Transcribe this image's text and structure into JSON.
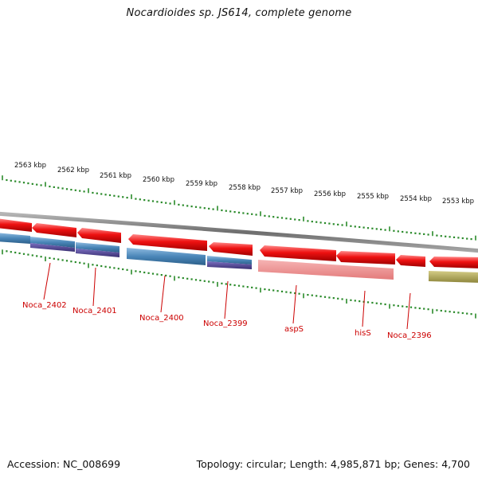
{
  "title": "Nocardioides sp. JS614, complete genome",
  "footer": {
    "accession": "Accession: NC_008699",
    "topology": "Topology: circular; Length: 4,985,871 bp; Genes: 4,700"
  },
  "colors": {
    "backbone": "#8a8a8a",
    "ticks": "#2a8a2a",
    "forward_gene": "#ee1111",
    "reverse_gene_blue": "#4a86b8",
    "reverse_gene_purple": "#4b3f8a",
    "reverse_gene_pink": "#f09090",
    "reverse_gene_olive": "#b0a85a",
    "label": "#cc0000"
  },
  "diagram": {
    "type": "circular-genome-map-zoom",
    "scale_labels": [
      "2563 kbp",
      "2562 kbp",
      "2561 kbp",
      "2560 kbp",
      "2559 kbp",
      "2558 kbp",
      "2557 kbp",
      "2556 kbp",
      "2555 kbp",
      "2554 kbp",
      "2553 kbp"
    ],
    "gene_labels": [
      "Noca_2402",
      "Noca_2401",
      "Noca_2400",
      "Noca_2399",
      "aspS",
      "hisS",
      "Noca_2396"
    ]
  }
}
